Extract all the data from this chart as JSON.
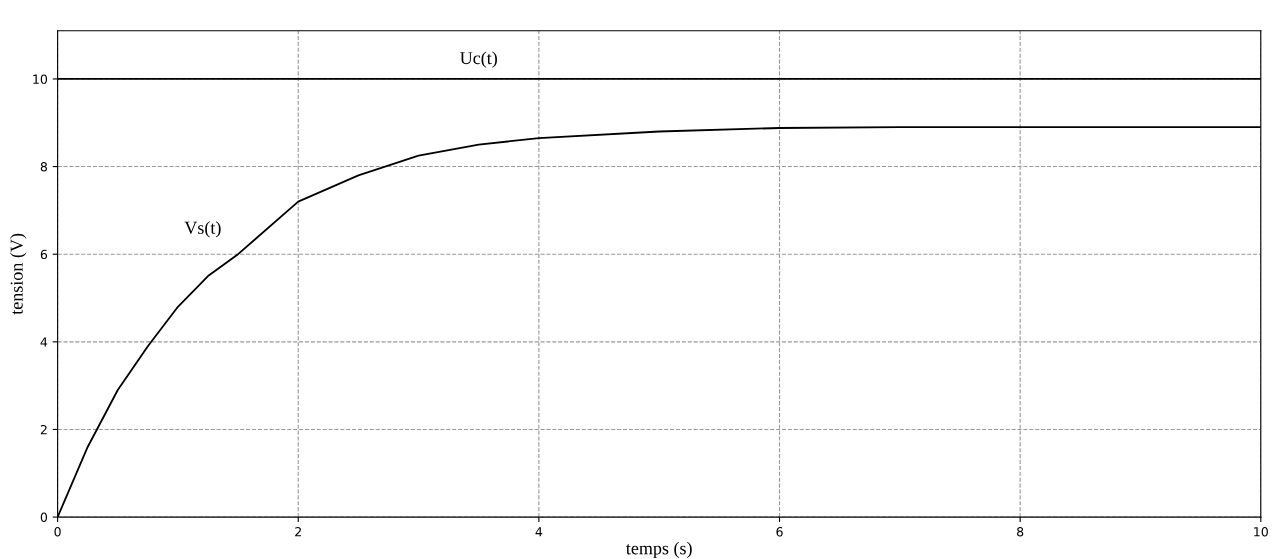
{
  "chart_data": {
    "type": "line",
    "xlabel": "temps (s)",
    "ylabel": "tension (V)",
    "xlim": [
      0,
      10
    ],
    "ylim": [
      0,
      11.1
    ],
    "xticks": [
      0,
      2,
      4,
      6,
      8,
      10
    ],
    "yticks": [
      0,
      2,
      4,
      6,
      8,
      10
    ],
    "grid": true,
    "legend": false,
    "marker": "none",
    "line_style": "solid",
    "series": [
      {
        "name": "Uc(t)",
        "color": "#000000",
        "x": [
          0,
          3.5,
          10
        ],
        "values": [
          10,
          10,
          10
        ]
      },
      {
        "name": "Vs(t)",
        "color": "#000000",
        "x": [
          0,
          0.25,
          0.5,
          0.75,
          1,
          1.25,
          1.5,
          2,
          2.5,
          3,
          3.5,
          4,
          5,
          6,
          7,
          8,
          10
        ],
        "values": [
          0,
          1.6,
          2.9,
          3.9,
          4.8,
          5.5,
          6.0,
          7.2,
          7.8,
          8.25,
          8.5,
          8.65,
          8.8,
          8.88,
          8.9,
          8.9,
          8.9
        ]
      }
    ]
  }
}
